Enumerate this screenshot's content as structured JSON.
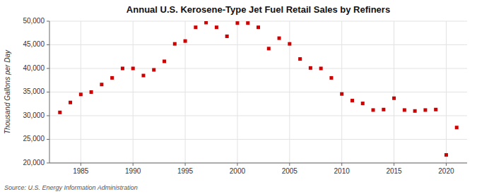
{
  "chart_data": {
    "type": "scatter",
    "title": "Annual U.S. Kerosene-Type Jet Fuel Retail Sales by Refiners",
    "ylabel": "Thousand Gallons per Day",
    "annotations": [
      "Source: U.S. Energy Information Administration"
    ],
    "x": [
      1983,
      1984,
      1985,
      1986,
      1987,
      1988,
      1989,
      1990,
      1991,
      1992,
      1993,
      1994,
      1995,
      1996,
      1997,
      1998,
      1999,
      2000,
      2001,
      2002,
      2003,
      2004,
      2005,
      2006,
      2007,
      2008,
      2009,
      2010,
      2011,
      2012,
      2013,
      2014,
      2015,
      2016,
      2017,
      2018,
      2019,
      2020,
      2021
    ],
    "values": [
      30700,
      32800,
      34500,
      35000,
      36600,
      38000,
      40000,
      40000,
      38500,
      39700,
      41500,
      45200,
      45800,
      48700,
      49700,
      48700,
      46800,
      49600,
      49600,
      48700,
      44200,
      46400,
      45200,
      42000,
      40100,
      40000,
      38000,
      34600,
      33200,
      32600,
      31200,
      31300,
      33700,
      31200,
      31000,
      31200,
      31300,
      21700,
      27500
    ],
    "color": "#cc0000",
    "marker": "square",
    "xlim": [
      1982,
      2022
    ],
    "xticks": [
      1985,
      1990,
      1995,
      2000,
      2005,
      2010,
      2015,
      2020
    ],
    "ylim": [
      20000,
      50000
    ],
    "yticks": [
      {
        "value": 20000,
        "label": "20,000"
      },
      {
        "value": 25000,
        "label": "25,000"
      },
      {
        "value": 30000,
        "label": "30,000"
      },
      {
        "value": 35000,
        "label": "35,000"
      },
      {
        "value": 40000,
        "label": "40,000"
      },
      {
        "value": 45000,
        "label": "45,000"
      },
      {
        "value": 50000,
        "label": "50,000"
      }
    ],
    "grid": true
  }
}
